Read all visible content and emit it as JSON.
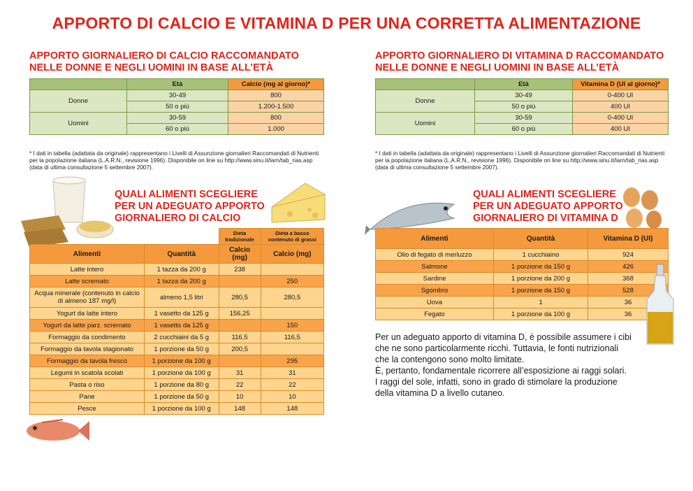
{
  "title": "APPORTO DI CALCIO E VITAMINA D PER UNA CORRETTA ALIMENTAZIONE",
  "calcio_req": {
    "title_l1": "APPORTO GIORNALIERO DI CALCIO RACCOMANDATO",
    "title_l2": "NELLE DONNE E NEGLI UOMINI IN BASE ALL’ETÀ",
    "col_age": "Età",
    "col_val": "Calcio (mg al giorno)*",
    "donne": "Donne",
    "uomini": "Uomini",
    "rows": [
      {
        "age": "30-49",
        "val": "800"
      },
      {
        "age": "50 o più",
        "val": "1.200-1.500"
      },
      {
        "age": "30-59",
        "val": "800"
      },
      {
        "age": "60 o più",
        "val": "1.000"
      }
    ],
    "note": "* I dati in tabella (adattata da originale) rappresentano i Livelli di Assunzione giornalieri Raccomandati di Nutrienti per la popolazione italiana (L.A.R.N., revisione 1996). Disponibile on line su http://www.sinu.it/larn/tab_rias.asp (data di ultima consultazione 5 settembre 2007)."
  },
  "vitd_req": {
    "title_l1": "APPORTO GIORNALIERO DI VITAMINA D RACCOMANDATO",
    "title_l2": "NELLE DONNE E NEGLI UOMINI IN BASE ALL’ETÀ",
    "col_age": "Età",
    "col_val": "Vitamina D (UI al giorno)*",
    "donne": "Donne",
    "uomini": "Uomini",
    "rows": [
      {
        "age": "30-49",
        "val": "0-400 UI"
      },
      {
        "age": "50 o più",
        "val": "400 UI"
      },
      {
        "age": "30-59",
        "val": "0-400 UI"
      },
      {
        "age": "60 o più",
        "val": "400 UI"
      }
    ],
    "note": "* I dati in tabella (adattata da originale) rappresentano i Livelli di Assunzione giornalieri Raccomandati di Nutrienti per la popolazione italiana (L.A.R.N., revisione 1996). Disponibile on line su http://www.sinu.it/larn/tab_rias.asp (data di ultima consultazione 5 settembre 2007)."
  },
  "calcio_foods": {
    "title_l1": "QUALI ALIMENTI SCEGLIERE",
    "title_l2": "PER UN ADEGUATO APPORTO",
    "title_l3": "GIORNALIERO DI CALCIO",
    "col_food": "Alimenti",
    "col_qty": "Quantità",
    "col_trad_top": "Dieta tradizionale",
    "col_low_top": "Dieta a basso contenuto di grassi",
    "col_trad": "Calcio (mg)",
    "col_low": "Calcio (mg)",
    "rows": [
      {
        "food": "Latte intero",
        "qty": "1 tazza da 200 g",
        "trad": "238",
        "low": ""
      },
      {
        "food": "Latte scremato",
        "qty": "1 tazza da 200 g",
        "trad": "",
        "low": "250"
      },
      {
        "food": "Acqua minerale (contenuto in calcio di almeno 187 mg/l)",
        "qty": "almeno 1,5 litri",
        "trad": "280,5",
        "low": "280,5"
      },
      {
        "food": "Yogurt da latte intero",
        "qty": "1 vasetto da 125 g",
        "trad": "156,25",
        "low": ""
      },
      {
        "food": "Yogurt da latte parz. scremato",
        "qty": "1 vasetto da 125 g",
        "trad": "",
        "low": "150"
      },
      {
        "food": "Formaggio da condimento",
        "qty": "2 cucchiaini da 5 g",
        "trad": "116,5",
        "low": "116,5"
      },
      {
        "food": "Formaggio da tavola stagionato",
        "qty": "1 porzione da 50 g",
        "trad": "200,5",
        "low": ""
      },
      {
        "food": "Formaggio da tavola fresco",
        "qty": "1 porzione da 100 g",
        "trad": "",
        "low": "295"
      },
      {
        "food": "Legumi in scatola scolati",
        "qty": "1 porzione da 100 g",
        "trad": "31",
        "low": "31"
      },
      {
        "food": "Pasta o riso",
        "qty": "1 porzione da 80 g",
        "trad": "22",
        "low": "22"
      },
      {
        "food": "Pane",
        "qty": "1 porzione da 50 g",
        "trad": "10",
        "low": "10"
      },
      {
        "food": "Pesce",
        "qty": "1 porzione da 100 g",
        "trad": "148",
        "low": "148"
      }
    ]
  },
  "vitd_foods": {
    "title_l1": "QUALI ALIMENTI SCEGLIERE",
    "title_l2": "PER UN ADEGUATO APPORTO",
    "title_l3": "GIORNALIERO DI VITAMINA D",
    "col_food": "Alimenti",
    "col_qty": "Quantità",
    "col_val": "Vitamina D (UI)",
    "rows": [
      {
        "food": "Olio di fegato di merluzzo",
        "qty": "1 cucchiaino",
        "val": "924"
      },
      {
        "food": "Salmone",
        "qty": "1 porzione da 150 g",
        "val": "426"
      },
      {
        "food": "Sardine",
        "qty": "1 porzione da 200 g",
        "val": "368"
      },
      {
        "food": "Sgombro",
        "qty": "1 porzione da 150 g",
        "val": "528"
      },
      {
        "food": "Uova",
        "qty": "1",
        "val": "36"
      },
      {
        "food": "Fegato",
        "qty": "1 porzione da 100 g",
        "val": "36"
      }
    ]
  },
  "paragraph": {
    "l1": "Per un adeguato apporto di vitamina D, è possibile assumere i cibi",
    "l2": "che ne sono particolarmente ricchi. Tuttavia, le fonti nutrizionali",
    "l3": "che la contengono sono molto limitate.",
    "l4": "È, pertanto, fondamentale ricorrere all’esposizione ai raggi solari.",
    "l5": "I raggi del sole, infatti, sono in grado di stimolare la produzione",
    "l6": "della vitamina D a livello cutaneo."
  },
  "colors": {
    "accent": "#e2231a",
    "orange": "#f49a3c",
    "green": "#a9c07a"
  }
}
